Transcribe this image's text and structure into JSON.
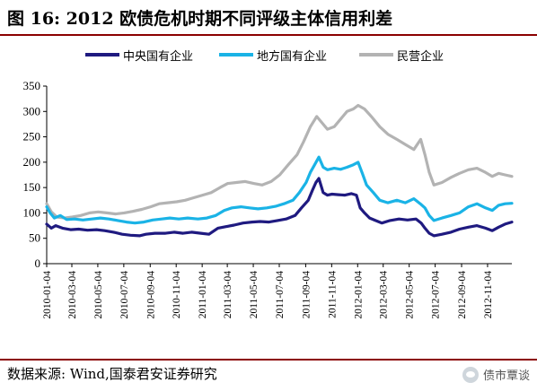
{
  "title": "图 16:  2012 欧债危机时期不同评级主体信用利差",
  "source": "数据来源:  Wind,国泰君安证券研究",
  "watermark": "债市覃谈",
  "colors": {
    "accent": "#8b0000"
  },
  "chart_data": {
    "type": "line",
    "ylim": [
      0,
      350
    ],
    "yticks": [
      0,
      50,
      100,
      150,
      200,
      250,
      300,
      350
    ],
    "xlim": [
      "2010-01-04",
      "2012-12-31"
    ],
    "xticks": [
      "2010-01-04",
      "2010-03-04",
      "2010-05-04",
      "2010-07-04",
      "2010-09-04",
      "2010-11-04",
      "2011-01-04",
      "2011-03-04",
      "2011-05-04",
      "2011-07-04",
      "2011-09-04",
      "2011-11-04",
      "2012-01-04",
      "2012-03-04",
      "2012-05-04",
      "2012-07-04",
      "2012-09-04",
      "2012-11-04"
    ],
    "legend_position": "top",
    "grid": false,
    "series": [
      {
        "name": "中央国有企业",
        "color": "#1f1a80",
        "points": [
          [
            "2010-01-04",
            78
          ],
          [
            "2010-01-15",
            70
          ],
          [
            "2010-01-25",
            75
          ],
          [
            "2010-02-10",
            70
          ],
          [
            "2010-03-01",
            67
          ],
          [
            "2010-03-20",
            68
          ],
          [
            "2010-04-10",
            66
          ],
          [
            "2010-05-01",
            67
          ],
          [
            "2010-05-20",
            65
          ],
          [
            "2010-06-10",
            62
          ],
          [
            "2010-06-30",
            58
          ],
          [
            "2010-07-20",
            56
          ],
          [
            "2010-08-10",
            55
          ],
          [
            "2010-08-25",
            58
          ],
          [
            "2010-09-15",
            60
          ],
          [
            "2010-10-10",
            60
          ],
          [
            "2010-10-30",
            62
          ],
          [
            "2010-11-20",
            60
          ],
          [
            "2010-12-10",
            62
          ],
          [
            "2011-01-01",
            60
          ],
          [
            "2011-01-20",
            58
          ],
          [
            "2011-02-10",
            70
          ],
          [
            "2011-03-01",
            73
          ],
          [
            "2011-03-20",
            76
          ],
          [
            "2011-04-10",
            80
          ],
          [
            "2011-05-01",
            82
          ],
          [
            "2011-05-20",
            83
          ],
          [
            "2011-06-10",
            82
          ],
          [
            "2011-06-30",
            85
          ],
          [
            "2011-07-20",
            88
          ],
          [
            "2011-08-10",
            95
          ],
          [
            "2011-08-25",
            110
          ],
          [
            "2011-09-10",
            125
          ],
          [
            "2011-09-20",
            145
          ],
          [
            "2011-09-28",
            160
          ],
          [
            "2011-10-05",
            168
          ],
          [
            "2011-10-15",
            140
          ],
          [
            "2011-10-25",
            135
          ],
          [
            "2011-11-05",
            137
          ],
          [
            "2011-11-20",
            136
          ],
          [
            "2011-12-05",
            135
          ],
          [
            "2011-12-20",
            138
          ],
          [
            "2012-01-01",
            135
          ],
          [
            "2012-01-10",
            110
          ],
          [
            "2012-01-20",
            100
          ],
          [
            "2012-02-01",
            90
          ],
          [
            "2012-02-15",
            85
          ],
          [
            "2012-03-01",
            80
          ],
          [
            "2012-03-20",
            85
          ],
          [
            "2012-04-10",
            88
          ],
          [
            "2012-04-30",
            86
          ],
          [
            "2012-05-20",
            88
          ],
          [
            "2012-06-01",
            80
          ],
          [
            "2012-06-10",
            70
          ],
          [
            "2012-06-20",
            60
          ],
          [
            "2012-07-01",
            55
          ],
          [
            "2012-07-20",
            58
          ],
          [
            "2012-08-10",
            62
          ],
          [
            "2012-08-30",
            68
          ],
          [
            "2012-09-20",
            72
          ],
          [
            "2012-10-10",
            75
          ],
          [
            "2012-10-30",
            70
          ],
          [
            "2012-11-15",
            65
          ],
          [
            "2012-11-30",
            72
          ],
          [
            "2012-12-15",
            78
          ],
          [
            "2012-12-31",
            82
          ]
        ]
      },
      {
        "name": "地方国有企业",
        "color": "#1ab3e6",
        "points": [
          [
            "2010-01-04",
            112
          ],
          [
            "2010-01-12",
            100
          ],
          [
            "2010-01-22",
            90
          ],
          [
            "2010-02-05",
            95
          ],
          [
            "2010-02-20",
            87
          ],
          [
            "2010-03-10",
            88
          ],
          [
            "2010-03-30",
            86
          ],
          [
            "2010-04-20",
            88
          ],
          [
            "2010-05-10",
            90
          ],
          [
            "2010-05-30",
            88
          ],
          [
            "2010-06-20",
            85
          ],
          [
            "2010-07-10",
            82
          ],
          [
            "2010-07-30",
            80
          ],
          [
            "2010-08-20",
            82
          ],
          [
            "2010-09-10",
            86
          ],
          [
            "2010-10-01",
            88
          ],
          [
            "2010-10-20",
            90
          ],
          [
            "2010-11-10",
            88
          ],
          [
            "2010-12-01",
            90
          ],
          [
            "2010-12-25",
            88
          ],
          [
            "2011-01-15",
            90
          ],
          [
            "2011-02-05",
            95
          ],
          [
            "2011-02-25",
            105
          ],
          [
            "2011-03-15",
            110
          ],
          [
            "2011-04-05",
            112
          ],
          [
            "2011-04-25",
            110
          ],
          [
            "2011-05-15",
            108
          ],
          [
            "2011-06-05",
            110
          ],
          [
            "2011-06-25",
            113
          ],
          [
            "2011-07-15",
            118
          ],
          [
            "2011-08-05",
            125
          ],
          [
            "2011-08-20",
            140
          ],
          [
            "2011-09-05",
            160
          ],
          [
            "2011-09-15",
            180
          ],
          [
            "2011-09-25",
            195
          ],
          [
            "2011-10-05",
            210
          ],
          [
            "2011-10-15",
            190
          ],
          [
            "2011-10-25",
            185
          ],
          [
            "2011-11-10",
            188
          ],
          [
            "2011-11-25",
            186
          ],
          [
            "2011-12-10",
            190
          ],
          [
            "2011-12-25",
            195
          ],
          [
            "2012-01-05",
            200
          ],
          [
            "2012-01-15",
            178
          ],
          [
            "2012-01-25",
            155
          ],
          [
            "2012-02-10",
            140
          ],
          [
            "2012-02-25",
            125
          ],
          [
            "2012-03-15",
            120
          ],
          [
            "2012-04-05",
            125
          ],
          [
            "2012-04-25",
            120
          ],
          [
            "2012-05-15",
            128
          ],
          [
            "2012-05-30",
            118
          ],
          [
            "2012-06-10",
            110
          ],
          [
            "2012-06-20",
            95
          ],
          [
            "2012-07-01",
            85
          ],
          [
            "2012-07-20",
            90
          ],
          [
            "2012-08-10",
            95
          ],
          [
            "2012-08-30",
            100
          ],
          [
            "2012-09-20",
            112
          ],
          [
            "2012-10-10",
            118
          ],
          [
            "2012-10-30",
            110
          ],
          [
            "2012-11-15",
            105
          ],
          [
            "2012-11-30",
            115
          ],
          [
            "2012-12-15",
            118
          ],
          [
            "2012-12-31",
            119
          ]
        ]
      },
      {
        "name": "民营企业",
        "color": "#b3b3b3",
        "points": [
          [
            "2010-01-04",
            118
          ],
          [
            "2010-01-15",
            102
          ],
          [
            "2010-01-28",
            92
          ],
          [
            "2010-02-15",
            90
          ],
          [
            "2010-03-05",
            92
          ],
          [
            "2010-03-25",
            95
          ],
          [
            "2010-04-15",
            100
          ],
          [
            "2010-05-05",
            102
          ],
          [
            "2010-05-25",
            100
          ],
          [
            "2010-06-15",
            98
          ],
          [
            "2010-07-05",
            100
          ],
          [
            "2010-07-25",
            103
          ],
          [
            "2010-08-15",
            107
          ],
          [
            "2010-09-05",
            112
          ],
          [
            "2010-09-25",
            118
          ],
          [
            "2010-10-15",
            120
          ],
          [
            "2010-11-05",
            122
          ],
          [
            "2010-11-25",
            125
          ],
          [
            "2010-12-15",
            130
          ],
          [
            "2011-01-05",
            135
          ],
          [
            "2011-01-25",
            140
          ],
          [
            "2011-02-15",
            150
          ],
          [
            "2011-03-05",
            158
          ],
          [
            "2011-03-25",
            160
          ],
          [
            "2011-04-15",
            162
          ],
          [
            "2011-05-05",
            158
          ],
          [
            "2011-05-25",
            155
          ],
          [
            "2011-06-15",
            162
          ],
          [
            "2011-07-05",
            175
          ],
          [
            "2011-07-25",
            195
          ],
          [
            "2011-08-15",
            215
          ],
          [
            "2011-08-30",
            240
          ],
          [
            "2011-09-15",
            270
          ],
          [
            "2011-09-30",
            290
          ],
          [
            "2011-10-10",
            280
          ],
          [
            "2011-10-25",
            265
          ],
          [
            "2011-11-10",
            270
          ],
          [
            "2011-11-25",
            285
          ],
          [
            "2011-12-10",
            300
          ],
          [
            "2011-12-25",
            305
          ],
          [
            "2012-01-05",
            312
          ],
          [
            "2012-01-20",
            305
          ],
          [
            "2012-02-05",
            290
          ],
          [
            "2012-02-25",
            270
          ],
          [
            "2012-03-15",
            255
          ],
          [
            "2012-04-05",
            245
          ],
          [
            "2012-04-25",
            235
          ],
          [
            "2012-05-15",
            225
          ],
          [
            "2012-05-31",
            245
          ],
          [
            "2012-06-10",
            215
          ],
          [
            "2012-06-20",
            180
          ],
          [
            "2012-07-01",
            155
          ],
          [
            "2012-07-20",
            160
          ],
          [
            "2012-08-10",
            170
          ],
          [
            "2012-08-30",
            178
          ],
          [
            "2012-09-20",
            185
          ],
          [
            "2012-10-10",
            188
          ],
          [
            "2012-10-30",
            180
          ],
          [
            "2012-11-15",
            172
          ],
          [
            "2012-11-30",
            178
          ],
          [
            "2012-12-15",
            175
          ],
          [
            "2012-12-31",
            172
          ]
        ]
      }
    ]
  }
}
